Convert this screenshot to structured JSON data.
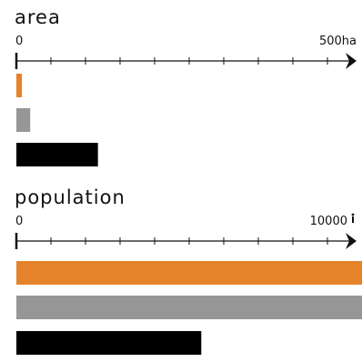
{
  "chart_data": [
    {
      "type": "bar",
      "orientation": "horizontal",
      "title": "area",
      "xlim": [
        0,
        500
      ],
      "tick_labels": [
        "0",
        "500ha"
      ],
      "minor_ticks": 10,
      "values": [
        8,
        20,
        118
      ],
      "colors": [
        "#e4832a",
        "#969696",
        "#000000"
      ]
    },
    {
      "type": "bar",
      "orientation": "horizontal",
      "title": "population",
      "xlim": [
        0,
        10000
      ],
      "tick_labels": [
        "0",
        "10000"
      ],
      "unit_icon": "person-icon",
      "minor_ticks": 10,
      "values": [
        10000,
        10000,
        5350
      ],
      "colors": [
        "#e4832a",
        "#969696",
        "#000000"
      ]
    }
  ]
}
